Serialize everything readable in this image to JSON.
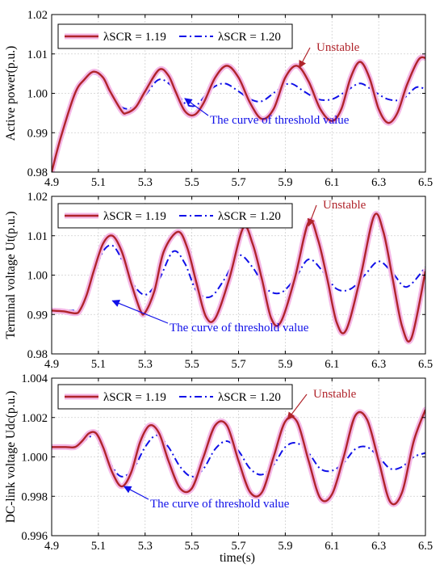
{
  "figure": {
    "xlabel": "time(s)",
    "legend_labels": [
      "λSCR = 1.19",
      "λSCR = 1.20"
    ],
    "series_colors": {
      "lambda_1_19": "#b0242b",
      "lambda_1_20": "#1010e8"
    },
    "halo_color": "#f4b8e6"
  },
  "chart_data": [
    {
      "type": "line",
      "ylabel": "Active power(p.u.)",
      "xlim": [
        4.9,
        6.5
      ],
      "ylim": [
        0.98,
        1.02
      ],
      "xticks": [
        "4.9",
        "5.1",
        "5.3",
        "5.5",
        "5.7",
        "5.9",
        "6.1",
        "6.3",
        "6.5"
      ],
      "yticks": [
        "0.98",
        "0.99",
        "1.00",
        "1.01",
        "1.02"
      ],
      "grid": true,
      "legend": "top-left",
      "annotations": [
        {
          "text": "Unstable",
          "color": "#b0242b",
          "target": [
            5.96,
            1.0065
          ]
        },
        {
          "text": "The curve of threshold value",
          "color": "#1010e8",
          "target": [
            5.47,
            0.9987
          ]
        }
      ],
      "series": [
        {
          "name": "λSCR = 1.19",
          "x": [
            4.9,
            4.94,
            5.0,
            5.04,
            5.08,
            5.12,
            5.15,
            5.2,
            5.22,
            5.26,
            5.3,
            5.36,
            5.4,
            5.43,
            5.47,
            5.51,
            5.55,
            5.6,
            5.65,
            5.7,
            5.75,
            5.8,
            5.85,
            5.9,
            5.95,
            6.0,
            6.05,
            6.1,
            6.14,
            6.18,
            6.22,
            6.26,
            6.3,
            6.34,
            6.38,
            6.42,
            6.47,
            6.5
          ],
          "y": [
            0.98,
            0.989,
            1.0,
            1.0035,
            1.0055,
            1.004,
            1.0005,
            0.9955,
            0.995,
            0.9965,
            1.0005,
            1.006,
            1.0045,
            1.0005,
            0.9955,
            0.9945,
            0.9975,
            1.004,
            1.007,
            1.004,
            0.9975,
            0.9935,
            0.996,
            1.004,
            1.007,
            1.003,
            0.996,
            0.993,
            0.996,
            1.004,
            1.008,
            1.004,
            0.996,
            0.9925,
            0.995,
            1.002,
            1.0085,
            1.009
          ]
        },
        {
          "name": "λSCR = 1.20",
          "x": [
            4.9,
            4.94,
            5.0,
            5.04,
            5.08,
            5.12,
            5.15,
            5.2,
            5.25,
            5.3,
            5.36,
            5.42,
            5.47,
            5.52,
            5.58,
            5.64,
            5.7,
            5.75,
            5.8,
            5.86,
            5.92,
            5.98,
            6.04,
            6.1,
            6.16,
            6.22,
            6.28,
            6.34,
            6.4,
            6.46,
            6.5
          ],
          "y": [
            0.98,
            0.989,
            1.0,
            1.0035,
            1.005,
            1.0035,
            1.0005,
            0.9965,
            0.9965,
            0.9995,
            1.0035,
            1.0015,
            0.9975,
            0.997,
            1.001,
            1.0025,
            1.0005,
            0.9985,
            0.998,
            1.0005,
            1.0025,
            1.0005,
            0.9985,
            0.9985,
            1.0005,
            1.0025,
            1.0005,
            0.9985,
            0.9985,
            1.0015,
            1.001
          ]
        }
      ]
    },
    {
      "type": "line",
      "ylabel": "Terminal voltage Ut(p.u.)",
      "xlim": [
        4.9,
        6.5
      ],
      "ylim": [
        0.98,
        1.02
      ],
      "xticks": [
        "4.9",
        "5.1",
        "5.3",
        "5.5",
        "5.7",
        "5.9",
        "6.1",
        "6.3",
        "6.5"
      ],
      "yticks": [
        "0.98",
        "0.99",
        "1.00",
        "1.01",
        "1.02"
      ],
      "grid": true,
      "legend": "top-left",
      "annotations": [
        {
          "text": "Unstable",
          "color": "#b0242b",
          "target": [
            6.0,
            1.0125
          ]
        },
        {
          "text": "The curve of threshold value",
          "color": "#1010e8",
          "target": [
            5.16,
            0.9935
          ]
        }
      ],
      "series": [
        {
          "name": "λSCR = 1.19",
          "x": [
            4.9,
            4.95,
            5.0,
            5.02,
            5.05,
            5.08,
            5.12,
            5.16,
            5.2,
            5.24,
            5.28,
            5.3,
            5.34,
            5.38,
            5.44,
            5.48,
            5.52,
            5.56,
            5.6,
            5.66,
            5.72,
            5.76,
            5.8,
            5.84,
            5.88,
            5.94,
            6.0,
            6.04,
            6.08,
            6.12,
            6.16,
            6.22,
            6.28,
            6.32,
            6.36,
            6.4,
            6.44,
            6.5
          ],
          "y": [
            0.991,
            0.9908,
            0.9903,
            0.991,
            0.995,
            1.001,
            1.008,
            1.01,
            1.006,
            0.998,
            0.991,
            0.9905,
            0.996,
            1.006,
            1.011,
            1.007,
            0.998,
            0.9895,
            0.989,
            0.999,
            1.012,
            1.008,
            0.999,
            0.989,
            0.988,
            0.999,
            1.0135,
            1.009,
            0.999,
            0.988,
            0.986,
            0.999,
            1.015,
            1.011,
            0.999,
            0.987,
            0.984,
            1.001
          ]
        },
        {
          "name": "λSCR = 1.20",
          "x": [
            4.9,
            4.95,
            5.0,
            5.02,
            5.05,
            5.08,
            5.12,
            5.16,
            5.2,
            5.24,
            5.3,
            5.36,
            5.42,
            5.47,
            5.52,
            5.58,
            5.64,
            5.7,
            5.76,
            5.82,
            5.88,
            5.94,
            6.0,
            6.06,
            6.12,
            6.18,
            6.24,
            6.3,
            6.36,
            6.42,
            6.5
          ],
          "y": [
            0.9915,
            0.9912,
            0.991,
            0.9915,
            0.995,
            1.0,
            1.006,
            1.0075,
            1.004,
            0.9985,
            0.995,
            0.999,
            1.006,
            1.003,
            0.996,
            0.9945,
            0.999,
            1.005,
            1.002,
            0.9965,
            0.9955,
            0.999,
            1.004,
            1.001,
            0.9965,
            0.9965,
            1.0,
            1.0035,
            1.0005,
            0.997,
            1.002
          ]
        }
      ]
    },
    {
      "type": "line",
      "ylabel": "DC-link voltage Udc(p.u.)",
      "xlim": [
        4.9,
        6.5
      ],
      "ylim": [
        0.996,
        1.004
      ],
      "xticks": [
        "4.9",
        "5.1",
        "5.3",
        "5.5",
        "5.7",
        "5.9",
        "6.1",
        "6.3",
        "6.5"
      ],
      "yticks": [
        "0.996",
        "0.998",
        "1.000",
        "1.002",
        "1.004"
      ],
      "grid": true,
      "legend": "top-left",
      "annotations": [
        {
          "text": "Unstable",
          "color": "#b0242b",
          "target": [
            5.91,
            1.0019
          ]
        },
        {
          "text": "The curve of threshold value",
          "color": "#1010e8",
          "target": [
            5.21,
            0.9985
          ]
        }
      ],
      "series": [
        {
          "name": "λSCR = 1.19",
          "x": [
            4.9,
            4.96,
            5.0,
            5.03,
            5.06,
            5.09,
            5.12,
            5.16,
            5.2,
            5.24,
            5.28,
            5.32,
            5.36,
            5.4,
            5.45,
            5.5,
            5.55,
            5.6,
            5.65,
            5.7,
            5.75,
            5.8,
            5.85,
            5.9,
            5.95,
            6.0,
            6.05,
            6.1,
            6.15,
            6.2,
            6.25,
            6.3,
            6.35,
            6.4,
            6.45,
            6.5
          ],
          "y": [
            1.0005,
            1.0005,
            1.0005,
            1.0008,
            1.0012,
            1.0012,
            1.0005,
            0.9992,
            0.9985,
            0.9992,
            1.0008,
            1.0016,
            1.0012,
            0.9998,
            0.9984,
            0.9984,
            1.0,
            1.0016,
            1.0016,
            0.9998,
            0.9982,
            0.9982,
            1.0,
            1.0018,
            1.0018,
            0.9998,
            0.9979,
            0.9981,
            1.0,
            1.0021,
            1.0019,
            0.9998,
            0.9977,
            0.9982,
            1.0008,
            1.0024
          ]
        },
        {
          "name": "λSCR = 1.20",
          "x": [
            4.9,
            4.96,
            5.0,
            5.03,
            5.06,
            5.09,
            5.12,
            5.16,
            5.2,
            5.25,
            5.3,
            5.35,
            5.4,
            5.45,
            5.5,
            5.55,
            5.6,
            5.65,
            5.7,
            5.75,
            5.8,
            5.85,
            5.9,
            5.95,
            6.0,
            6.05,
            6.1,
            6.15,
            6.2,
            6.25,
            6.3,
            6.35,
            6.4,
            6.45,
            6.5
          ],
          "y": [
            1.0005,
            1.0005,
            1.0005,
            1.0007,
            1.001,
            1.0011,
            1.0005,
            0.9995,
            0.999,
            0.9994,
            1.0005,
            1.0011,
            1.0005,
            0.9995,
            0.999,
            0.9994,
            1.0004,
            1.0008,
            1.0003,
            0.9994,
            0.9991,
            0.9996,
            1.0005,
            1.0007,
            1.0002,
            0.9994,
            0.9993,
            0.9997,
            1.0004,
            1.0005,
            1.0,
            0.9994,
            0.9995,
            1.0,
            1.0002
          ]
        }
      ]
    }
  ]
}
